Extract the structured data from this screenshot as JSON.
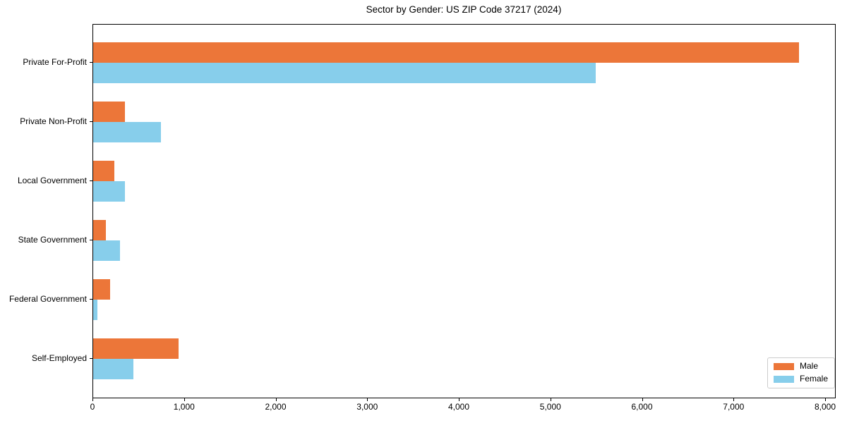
{
  "chart_data": {
    "type": "bar",
    "orientation": "horizontal",
    "title": "Sector by Gender: US ZIP Code 37217 (2024)",
    "categories": [
      "Private For-Profit",
      "Private Non-Profit",
      "Local Government",
      "State Government",
      "Federal Government",
      "Self-Employed"
    ],
    "series": [
      {
        "name": "Male",
        "color": "#ec7639",
        "values": [
          7710,
          350,
          230,
          140,
          185,
          930
        ]
      },
      {
        "name": "Female",
        "color": "#87ceeb",
        "values": [
          5490,
          740,
          350,
          290,
          45,
          440
        ]
      }
    ],
    "xlabel": "",
    "ylabel": "",
    "xlim": [
      0,
      8100
    ],
    "xticks": [
      0,
      1000,
      2000,
      3000,
      4000,
      5000,
      6000,
      7000,
      8000
    ],
    "xtick_labels": [
      "0",
      "1,000",
      "2,000",
      "3,000",
      "4,000",
      "5,000",
      "6,000",
      "7,000",
      "8,000"
    ],
    "grid": false,
    "legend_position": "lower right",
    "colors": {
      "background": "#ffffff",
      "axis": "#000000",
      "male": "#ec7639",
      "female": "#87ceeb"
    }
  }
}
